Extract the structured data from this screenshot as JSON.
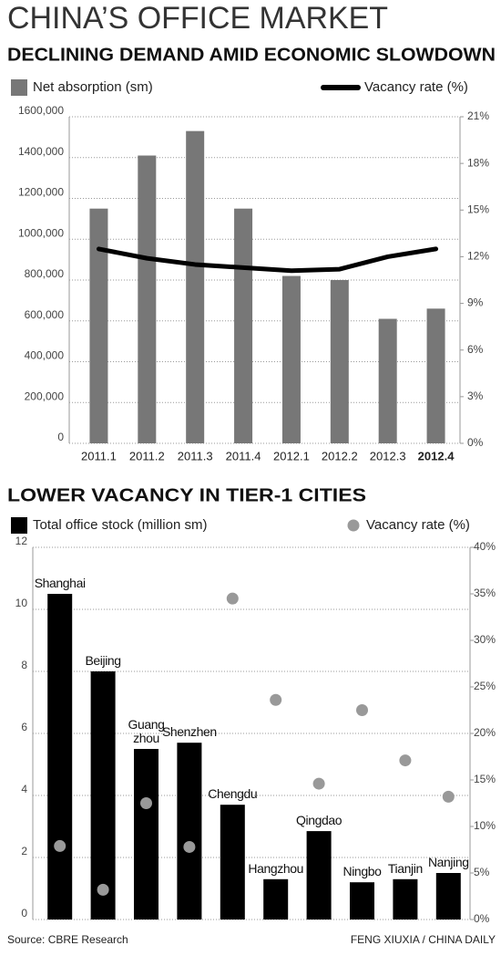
{
  "header": {
    "title": "CHINA’S OFFICE MARKET"
  },
  "chart_data": [
    {
      "type": "bar",
      "title": "DECLINING DEMAND AMID ECONOMIC SLOWDOWN",
      "categories": [
        "2011.1",
        "2011.2",
        "2011.3",
        "2011.4",
        "2012.1",
        "2012.2",
        "2012.3",
        "2012.4"
      ],
      "series": [
        {
          "name": "Net absorption (sm)",
          "type": "bar",
          "color": "#777777",
          "values": [
            1150000,
            1410000,
            1530000,
            1150000,
            820000,
            800000,
            610000,
            660000
          ]
        },
        {
          "name": "Vacancy rate (%)",
          "type": "line",
          "axis": "y2",
          "color": "#000000",
          "values": [
            12.5,
            11.9,
            11.5,
            11.3,
            11.1,
            11.2,
            12.0,
            12.5
          ]
        }
      ],
      "ylim": [
        0,
        1600000
      ],
      "yticks": [
        0,
        {
          "value": 200000,
          "label": "200,000"
        },
        {
          "value": 400000,
          "label": "400,000"
        },
        {
          "value": 600000,
          "label": "600,000"
        },
        {
          "value": 800000,
          "label": "800,000"
        },
        {
          "value": 1000000,
          "label": "1000,000"
        },
        {
          "value": 1200000,
          "label": "1200,000"
        },
        {
          "value": 1400000,
          "label": "1400,000"
        },
        {
          "value": 1600000,
          "label": "1600,000"
        }
      ],
      "y2lim": [
        0,
        21
      ],
      "y2ticks": [
        {
          "value": 0,
          "label": "0%"
        },
        {
          "value": 3,
          "label": "3%"
        },
        {
          "value": 6,
          "label": "6%"
        },
        {
          "value": 9,
          "label": "9%"
        },
        {
          "value": 12,
          "label": "12%"
        },
        {
          "value": 15,
          "label": "15%"
        },
        {
          "value": 18,
          "label": "18%"
        },
        {
          "value": 21,
          "label": "21%"
        }
      ],
      "grid": true
    },
    {
      "type": "bar",
      "title": "LOWER VACANCY IN TIER-1 CITIES",
      "categories": [
        "Shanghai",
        "Beijing",
        "Guang\nzhou",
        "Shenzhen",
        "Chengdu",
        "Hangzhou",
        "Qingdao",
        "Ningbo",
        "Tianjin",
        "Nanjing"
      ],
      "series": [
        {
          "name": "Total office stock (million sm)",
          "type": "bar",
          "color": "#000000",
          "values": [
            10.5,
            8.0,
            5.5,
            5.7,
            3.7,
            1.3,
            2.85,
            1.2,
            1.3,
            1.5
          ]
        },
        {
          "name": "Vacancy rate (%)",
          "type": "scatter",
          "axis": "y2",
          "color": "#999999",
          "values": [
            7.9,
            3.2,
            12.5,
            7.8,
            34.5,
            23.6,
            14.6,
            22.5,
            17.1,
            13.2
          ]
        }
      ],
      "ylim": [
        0,
        12
      ],
      "yticks": [
        0,
        2,
        4,
        6,
        8,
        10,
        12
      ],
      "y2lim": [
        0,
        40
      ],
      "y2ticks": [
        {
          "value": 0,
          "label": "0%"
        },
        {
          "value": 5,
          "label": "5%"
        },
        {
          "value": 10,
          "label": "10%"
        },
        {
          "value": 15,
          "label": "15%"
        },
        {
          "value": 20,
          "label": "20%"
        },
        {
          "value": 25,
          "label": "25%"
        },
        {
          "value": 30,
          "label": "30%"
        },
        {
          "value": 35,
          "label": "35%"
        },
        {
          "value": 40,
          "label": "40%"
        }
      ],
      "grid": true
    }
  ],
  "footer": {
    "source": "Source: CBRE Research",
    "credit": "FENG XIUXIA / CHINA DAILY"
  }
}
